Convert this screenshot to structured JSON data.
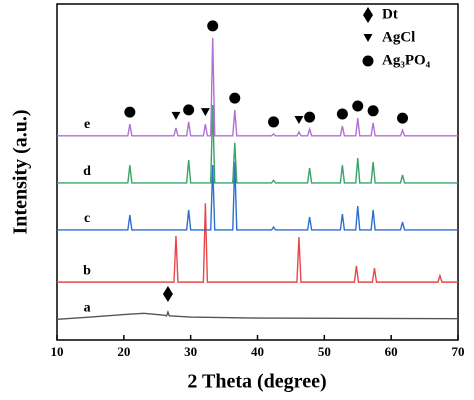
{
  "chart_data": {
    "type": "line",
    "xlabel": "2 Theta (degree)",
    "ylabel": "Intensity (a.u.)",
    "xlim": [
      10,
      70
    ],
    "xticks": [
      10,
      20,
      30,
      40,
      50,
      60,
      70
    ],
    "ylim": [
      0,
      100
    ],
    "series": [
      {
        "name": "a",
        "color": "#555555",
        "x": [
          10,
          15,
          20,
          23,
          26,
          26.4,
          26.6,
          26.8,
          30,
          40,
          70
        ],
        "values": [
          6.5,
          7.2,
          8,
          8.4,
          7.8,
          7.6,
          8.8,
          7.6,
          7.2,
          6.9,
          6.7
        ]
      },
      {
        "name": "b",
        "color": "#e8474a",
        "x": [
          10,
          27.5,
          27.8,
          28.1,
          31.9,
          32.2,
          32.5,
          45.9,
          46.2,
          46.5,
          54.5,
          54.8,
          55.1,
          57.2,
          57.5,
          57.8,
          67.0,
          67.3,
          67.6,
          70
        ],
        "values": [
          18.2,
          18.2,
          32.7,
          18.2,
          18.2,
          43,
          18.2,
          18.2,
          32.4,
          18.2,
          18.2,
          23.3,
          18.2,
          18.2,
          22.6,
          18.2,
          18.2,
          20.2,
          18.2,
          18.2
        ]
      },
      {
        "name": "c",
        "color": "#2e6fcf",
        "x": [
          10,
          20.6,
          20.9,
          21.2,
          29.4,
          29.7,
          30.0,
          33.0,
          33.3,
          33.6,
          36.3,
          36.6,
          36.9,
          42.1,
          42.4,
          42.7,
          47.5,
          47.8,
          48.1,
          52.4,
          52.7,
          53.0,
          54.7,
          55.0,
          55.3,
          57.0,
          57.3,
          57.6,
          61.4,
          61.7,
          62.0,
          70
        ],
        "values": [
          34.6,
          34.6,
          39.3,
          34.6,
          34.6,
          40.9,
          34.6,
          34.6,
          55,
          34.6,
          34.6,
          56,
          34.6,
          34.6,
          35.5,
          34.6,
          34.6,
          38.7,
          34.6,
          34.6,
          39.6,
          34.6,
          34.6,
          42.1,
          34.6,
          34.6,
          40.9,
          34.6,
          34.6,
          37.1,
          34.6,
          34.6
        ]
      },
      {
        "name": "d",
        "color": "#3aa36a",
        "x": [
          10,
          20.6,
          20.9,
          21.2,
          29.4,
          29.7,
          30.0,
          33.0,
          33.3,
          33.6,
          36.3,
          36.6,
          36.9,
          42.1,
          42.4,
          42.7,
          47.5,
          47.8,
          48.1,
          52.4,
          52.7,
          53.0,
          54.7,
          55.0,
          55.3,
          57.0,
          57.3,
          57.6,
          61.4,
          61.7,
          62.0,
          70
        ],
        "values": [
          49.4,
          49.4,
          55,
          49.4,
          49.4,
          56.6,
          49.4,
          49.4,
          73.9,
          49.4,
          49.4,
          62,
          49.4,
          49.4,
          50.2,
          49.4,
          49.4,
          54.1,
          49.4,
          49.4,
          55,
          49.4,
          49.4,
          57.2,
          49.4,
          49.4,
          56,
          49.4,
          49.4,
          51.9,
          49.4,
          49.4
        ]
      },
      {
        "name": "e",
        "color": "#b071d4",
        "x": [
          10,
          20.6,
          20.9,
          21.2,
          27.5,
          27.8,
          28.1,
          29.4,
          29.7,
          30.0,
          31.9,
          32.2,
          32.5,
          33.0,
          33.3,
          33.6,
          36.3,
          36.6,
          36.9,
          42.1,
          42.4,
          42.7,
          45.9,
          46.2,
          46.5,
          47.5,
          47.8,
          48.1,
          52.4,
          52.7,
          53.0,
          54.7,
          55.0,
          55.3,
          57.0,
          57.3,
          57.6,
          61.4,
          61.7,
          62.0,
          70
        ],
        "values": [
          64.2,
          64.2,
          67.9,
          64.2,
          64.2,
          66.7,
          64.2,
          64.2,
          68.6,
          64.2,
          64.2,
          67.9,
          64.2,
          64.2,
          95,
          64.2,
          64.2,
          72.3,
          64.2,
          64.2,
          64.8,
          64.2,
          64.2,
          65.4,
          64.2,
          64.2,
          66.3,
          64.2,
          64.2,
          67.3,
          64.2,
          64.2,
          69.8,
          64.2,
          64.2,
          68.3,
          64.2,
          64.2,
          66,
          64.2,
          64.2
        ]
      }
    ],
    "phases": [
      {
        "name": "Dt",
        "symbol": "diamond",
        "peaks": [
          26.6
        ]
      },
      {
        "name": "AgCl",
        "symbol": "triangle",
        "peaks": [
          27.8,
          32.2,
          46.2
        ]
      },
      {
        "name": "Ag₃PO₄",
        "symbol": "circle",
        "peaks": [
          20.9,
          29.7,
          33.3,
          36.6,
          42.4,
          47.8,
          52.7,
          55.0,
          57.3,
          61.7
        ]
      }
    ]
  }
}
